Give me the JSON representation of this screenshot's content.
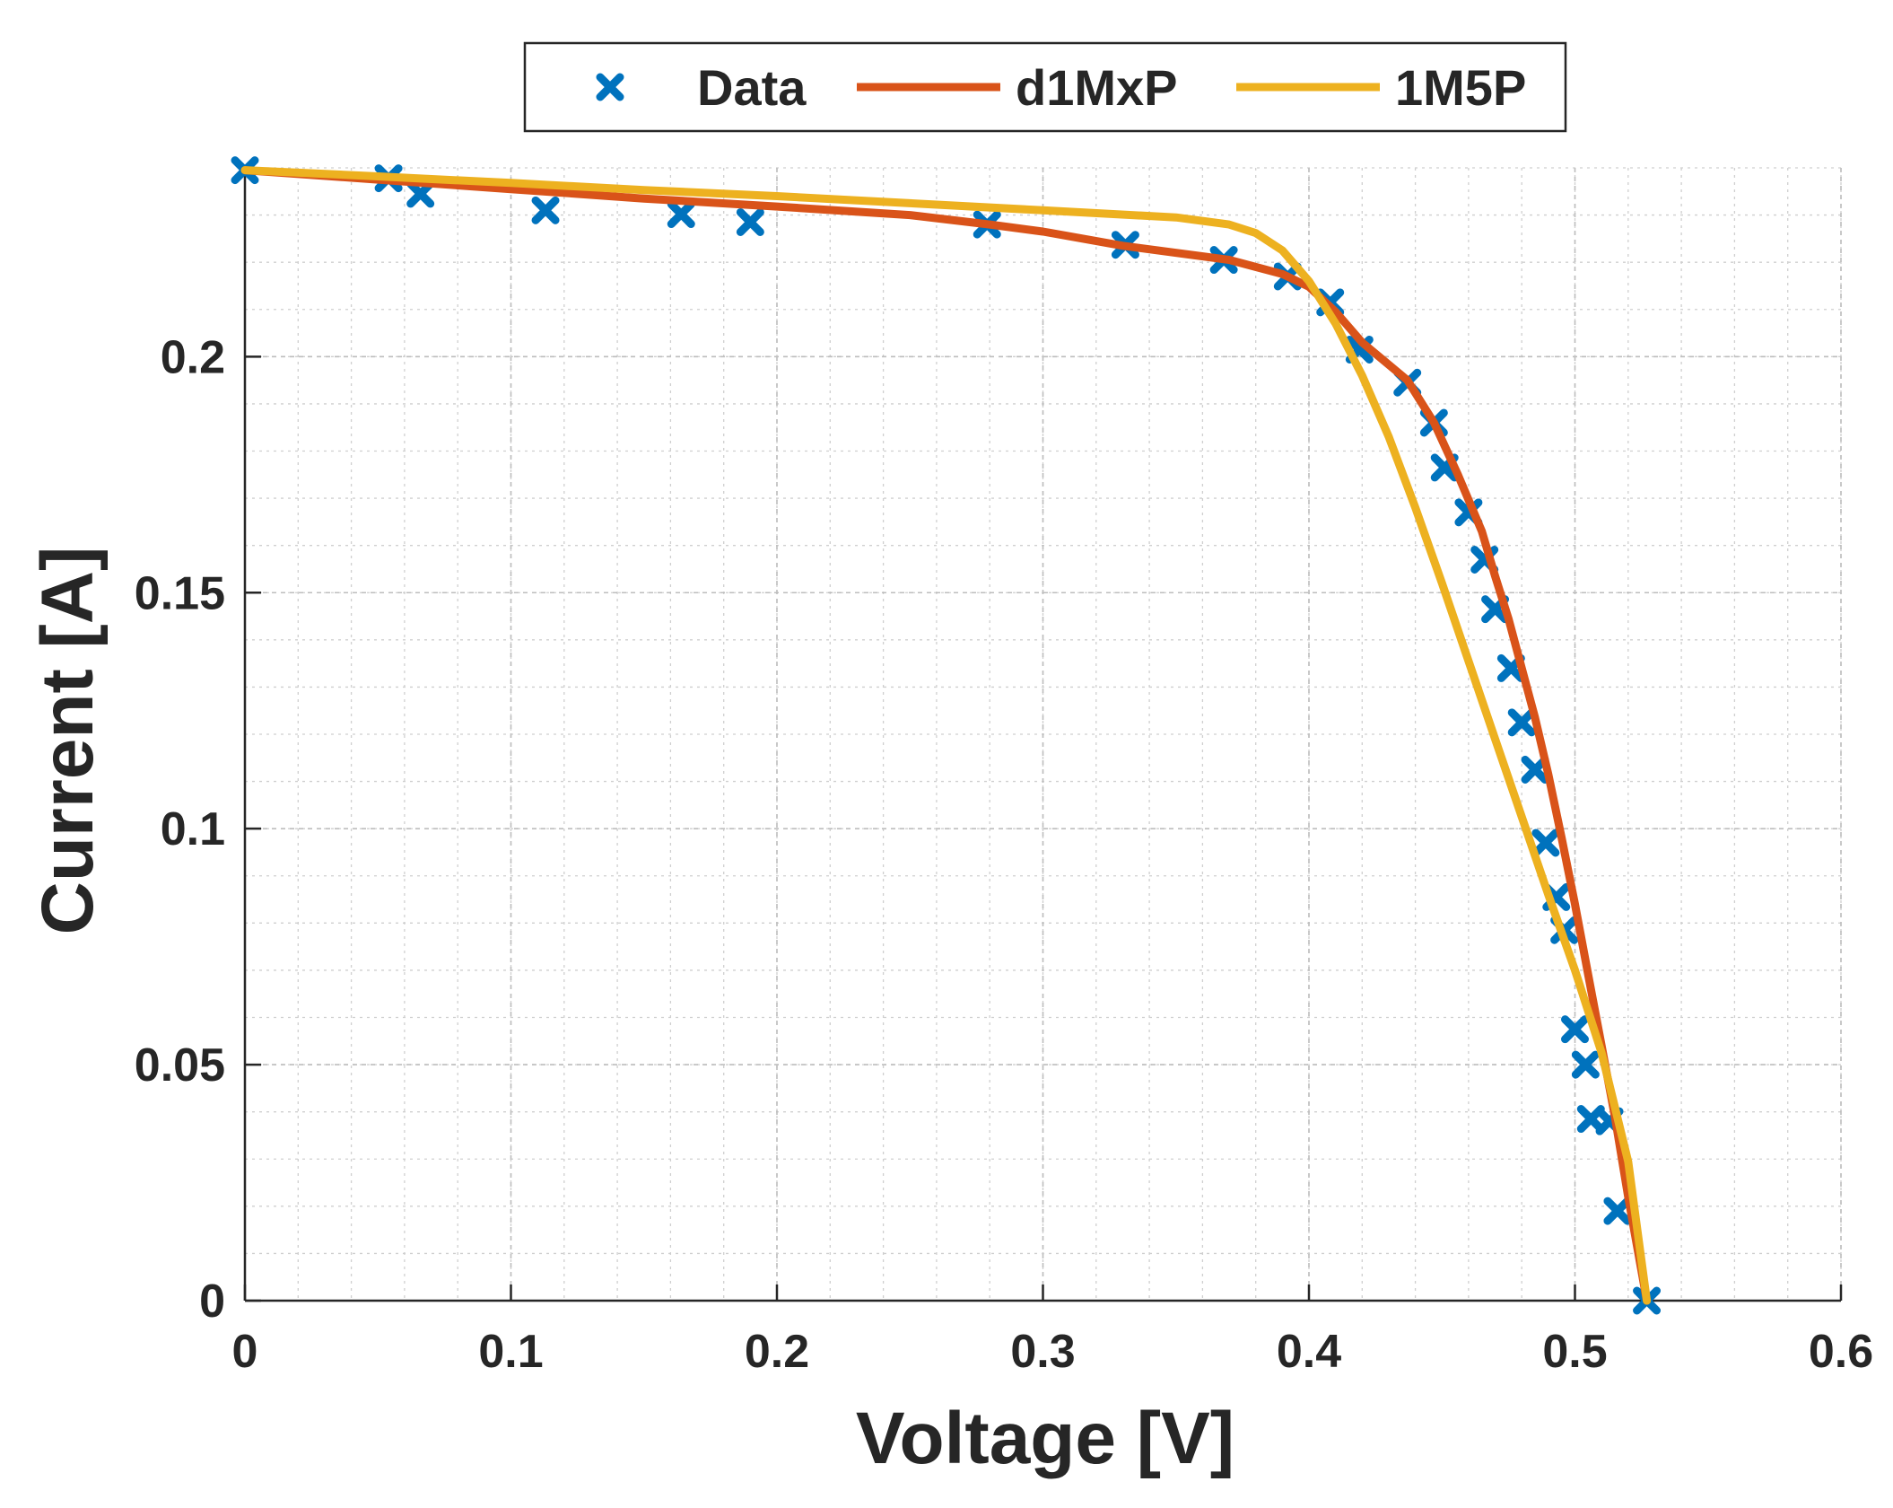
{
  "chart_data": {
    "type": "line",
    "title": "",
    "xlabel": "Voltage [V]",
    "ylabel": "Current [A]",
    "xlim": [
      0,
      0.6
    ],
    "ylim": [
      0,
      0.24
    ],
    "xticks": [
      0,
      0.1,
      0.2,
      0.3,
      0.4,
      0.5,
      0.6
    ],
    "xtick_labels": [
      "0",
      "0.1",
      "0.2",
      "0.3",
      "0.4",
      "0.5",
      "0.6"
    ],
    "yticks": [
      0,
      0.05,
      0.1,
      0.15,
      0.2
    ],
    "ytick_labels": [
      "0",
      "0.05",
      "0.1",
      "0.15",
      "0.2"
    ],
    "grid": true,
    "minor_grid": true,
    "legend_position": "top",
    "series": [
      {
        "name": "Data",
        "kind": "scatter",
        "marker": "x",
        "color": "#0072BD",
        "x": [
          0.0,
          0.054,
          0.066,
          0.113,
          0.164,
          0.19,
          0.279,
          0.331,
          0.368,
          0.392,
          0.408,
          0.419,
          0.437,
          0.447,
          0.451,
          0.46,
          0.466,
          0.47,
          0.476,
          0.48,
          0.485,
          0.489,
          0.493,
          0.496,
          0.5,
          0.504,
          0.506,
          0.513,
          0.516,
          0.527
        ],
        "y": [
          0.2395,
          0.2378,
          0.2345,
          0.231,
          0.2302,
          0.2285,
          0.228,
          0.2237,
          0.2205,
          0.217,
          0.2115,
          0.2015,
          0.1945,
          0.186,
          0.1765,
          0.167,
          0.157,
          0.1465,
          0.134,
          0.1225,
          0.1125,
          0.097,
          0.0855,
          0.0785,
          0.0575,
          0.05,
          0.0385,
          0.038,
          0.019,
          0.0
        ]
      },
      {
        "name": "d1MxP",
        "kind": "line",
        "color": "#D95319",
        "x": [
          0.0,
          0.05,
          0.1,
          0.15,
          0.2,
          0.25,
          0.28,
          0.3,
          0.33,
          0.37,
          0.39,
          0.4,
          0.41,
          0.42,
          0.437,
          0.447,
          0.456,
          0.465,
          0.47,
          0.475,
          0.48,
          0.485,
          0.49,
          0.495,
          0.5,
          0.505,
          0.51,
          0.515,
          0.52,
          0.527
        ],
        "y": [
          0.2395,
          0.2375,
          0.2355,
          0.2335,
          0.2318,
          0.23,
          0.228,
          0.2265,
          0.2235,
          0.2205,
          0.2175,
          0.2148,
          0.2095,
          0.203,
          0.195,
          0.186,
          0.175,
          0.163,
          0.1535,
          0.1445,
          0.134,
          0.1235,
          0.1115,
          0.098,
          0.084,
          0.069,
          0.054,
          0.039,
          0.022,
          0.0
        ]
      },
      {
        "name": "1M5P",
        "kind": "line",
        "color": "#EDB120",
        "x": [
          0.0,
          0.05,
          0.1,
          0.15,
          0.2,
          0.25,
          0.3,
          0.35,
          0.37,
          0.38,
          0.39,
          0.4,
          0.41,
          0.42,
          0.43,
          0.44,
          0.45,
          0.46,
          0.47,
          0.48,
          0.49,
          0.5,
          0.51,
          0.52,
          0.527
        ],
        "y": [
          0.2395,
          0.2382,
          0.2368,
          0.2353,
          0.234,
          0.2325,
          0.231,
          0.2295,
          0.228,
          0.2262,
          0.2225,
          0.216,
          0.207,
          0.196,
          0.183,
          0.168,
          0.152,
          0.1355,
          0.119,
          0.1025,
          0.086,
          0.07,
          0.0525,
          0.0295,
          0.0
        ]
      }
    ]
  }
}
